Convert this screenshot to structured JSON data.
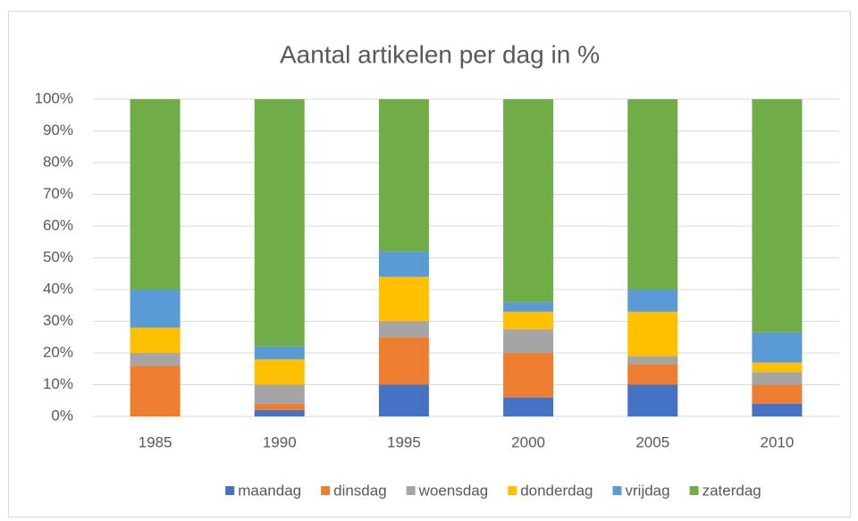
{
  "chart_data": {
    "type": "stacked_bar",
    "title": "Aantal artikelen per dag in %",
    "categories": [
      "1985",
      "1990",
      "1995",
      "2000",
      "2005",
      "2010"
    ],
    "series": [
      {
        "name": "maandag",
        "color": "#4472c4",
        "values": [
          0,
          2,
          10,
          6,
          10,
          4
        ]
      },
      {
        "name": "dinsdag",
        "color": "#ed7d31",
        "values": [
          16,
          2,
          15,
          14,
          6.5,
          6
        ]
      },
      {
        "name": "woensdag",
        "color": "#a5a5a5",
        "values": [
          4,
          6,
          5,
          7.5,
          2.5,
          4
        ]
      },
      {
        "name": "donderdag",
        "color": "#ffc000",
        "values": [
          8,
          8,
          14,
          5.5,
          14,
          3
        ]
      },
      {
        "name": "vrijdag",
        "color": "#5b9bd5",
        "values": [
          12,
          4,
          8,
          3,
          7,
          9.5
        ]
      },
      {
        "name": "zaterdag",
        "color": "#70ad47",
        "values": [
          60,
          78,
          48,
          64,
          60,
          73.5
        ]
      }
    ],
    "ylim": [
      0,
      100
    ],
    "yticks": [
      {
        "value": 0,
        "label": "0%"
      },
      {
        "value": 10,
        "label": "10%"
      },
      {
        "value": 20,
        "label": "20%"
      },
      {
        "value": 30,
        "label": "30%"
      },
      {
        "value": 40,
        "label": "40%"
      },
      {
        "value": 50,
        "label": "50%"
      },
      {
        "value": 60,
        "label": "60%"
      },
      {
        "value": 70,
        "label": "70%"
      },
      {
        "value": 80,
        "label": "80%"
      },
      {
        "value": 90,
        "label": "90%"
      },
      {
        "value": 100,
        "label": "100%"
      }
    ],
    "grid": true,
    "legend": "bottom"
  }
}
